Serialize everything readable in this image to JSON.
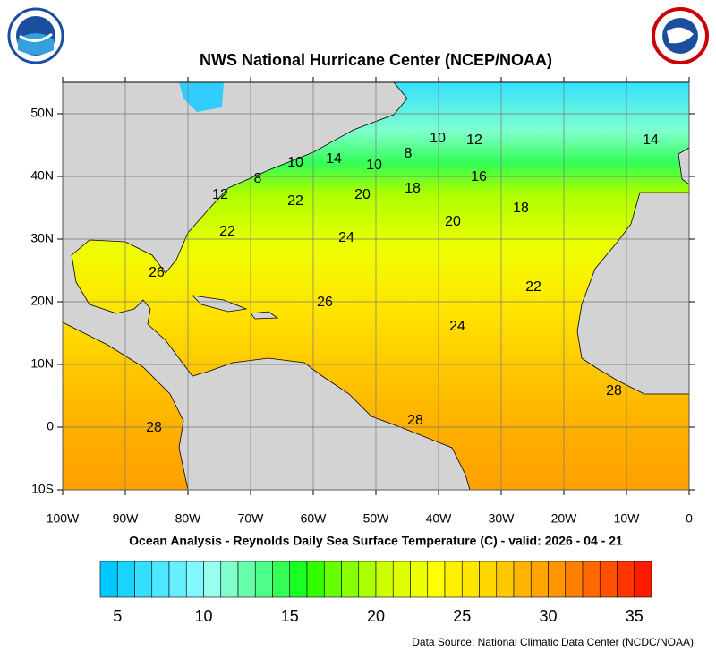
{
  "chart_data": {
    "type": "map",
    "title": "NWS National Hurricane Center (NCEP/NOAA)",
    "subtitle": "Ocean Analysis - Reynolds Daily Sea Surface Temperature (C) - valid: 2026 - 04 - 21",
    "source": "Data Source: National Climatic Data Center (NCDC/NOAA)",
    "xlim": [
      -100,
      0
    ],
    "xticks": [
      {
        "value": -100,
        "label": "100W"
      },
      {
        "value": -90,
        "label": "90W"
      },
      {
        "value": -80,
        "label": "80W"
      },
      {
        "value": -70,
        "label": "70W"
      },
      {
        "value": -60,
        "label": "60W"
      },
      {
        "value": -50,
        "label": "50W"
      },
      {
        "value": -40,
        "label": "40W"
      },
      {
        "value": -30,
        "label": "30W"
      },
      {
        "value": -20,
        "label": "20W"
      },
      {
        "value": -10,
        "label": "10W"
      },
      0
    ],
    "ylim": [
      -10,
      55
    ],
    "yticks": [
      {
        "value": -10,
        "label": "10S"
      },
      0,
      {
        "value": 10,
        "label": "10N"
      },
      {
        "value": 20,
        "label": "20N"
      },
      {
        "value": 30,
        "label": "30N"
      },
      {
        "value": 40,
        "label": "40N"
      },
      {
        "value": 50,
        "label": "50N"
      }
    ],
    "grid": true,
    "contour_labels": [
      10,
      12,
      14,
      8,
      16,
      14,
      10,
      10,
      8,
      12,
      22,
      20,
      18,
      18,
      20,
      22,
      24,
      26,
      22,
      26,
      24,
      28,
      28,
      28
    ],
    "colorbar": {
      "clim": [
        4,
        36
      ],
      "cticks": [
        5,
        10,
        15,
        20,
        25,
        30,
        35
      ],
      "colors": [
        "#00c8ff",
        "#1ad4ff",
        "#33e0ff",
        "#4de8ff",
        "#66f0ff",
        "#80f8ff",
        "#99ffee",
        "#80ffcc",
        "#66ffaa",
        "#4dff88",
        "#33ff55",
        "#1aff22",
        "#33ff00",
        "#66ff00",
        "#88ff00",
        "#aaff00",
        "#ccff00",
        "#ddff00",
        "#eeff00",
        "#ffff00",
        "#fff000",
        "#ffe600",
        "#ffd700",
        "#ffc800",
        "#ffb400",
        "#ffa500",
        "#ff9600",
        "#ff8000",
        "#ff6a00",
        "#ff5000",
        "#ff3500",
        "#ff1a00"
      ]
    }
  }
}
